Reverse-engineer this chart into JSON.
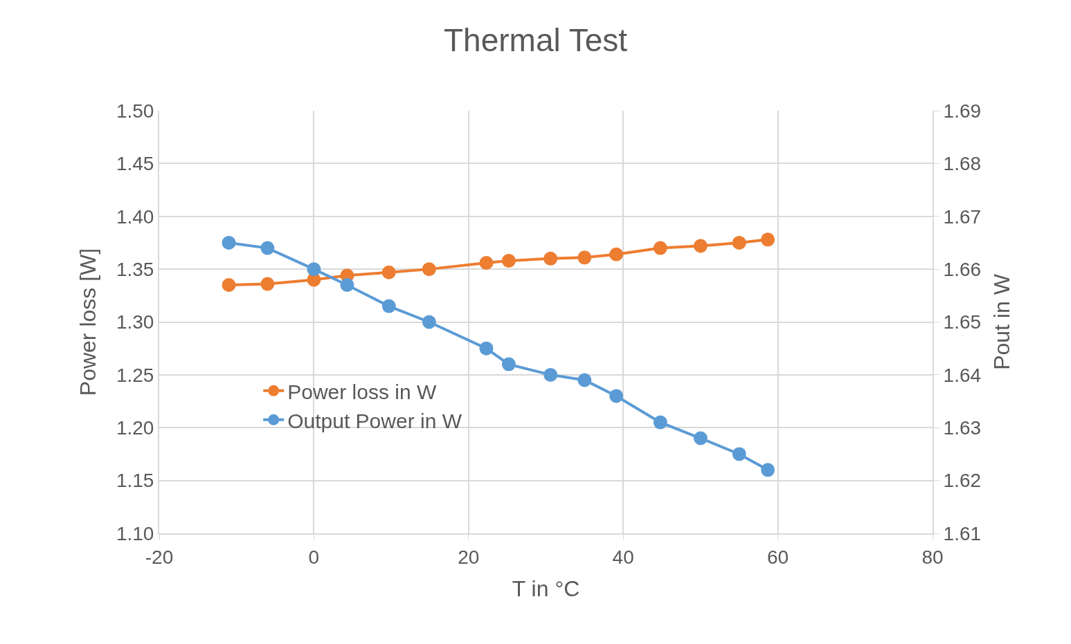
{
  "chart_data": {
    "type": "line",
    "title": "Thermal Test",
    "xlabel": "T in °C",
    "ylabel": "Power loss [W]",
    "y2label": "Pout in W",
    "x": [
      -11,
      -6,
      0,
      4.3,
      9.7,
      14.9,
      22.3,
      25.2,
      30.6,
      35.0,
      39.1,
      44.8,
      50.0,
      55.0,
      58.7
    ],
    "series": [
      {
        "name": "Power loss in W",
        "color": "#ed7d31",
        "values": [
          1.335,
          1.336,
          1.34,
          1.344,
          1.347,
          1.35,
          1.356,
          1.358,
          1.36,
          1.361,
          1.364,
          1.37,
          1.372,
          1.375,
          1.378
        ]
      },
      {
        "name": "Output Power in W",
        "color": "#5b9bd5",
        "axis": "y2",
        "values": [
          1.665,
          1.664,
          1.66,
          1.657,
          1.653,
          1.65,
          1.645,
          1.642,
          1.64,
          1.639,
          1.636,
          1.631,
          1.628,
          1.625,
          1.622
        ]
      }
    ],
    "xlim": [
      -20,
      80
    ],
    "xticks": [
      -20,
      0,
      20,
      40,
      60,
      80
    ],
    "ylim": [
      1.1,
      1.5
    ],
    "yticks": [
      {
        "value": 1.1,
        "label": "1.10"
      },
      1.15,
      {
        "value": 1.2,
        "label": "1.20"
      },
      1.25,
      {
        "value": 1.3,
        "label": "1.30"
      },
      1.35,
      {
        "value": 1.4,
        "label": "1.40"
      },
      1.45,
      {
        "value": 1.5,
        "label": "1.50"
      }
    ],
    "y2lim": [
      1.61,
      1.69
    ],
    "y2ticks": [
      1.61,
      1.62,
      1.63,
      1.64,
      1.65,
      1.66,
      1.67,
      1.68,
      1.69
    ],
    "grid": true,
    "legend": "center left",
    "marker": "circle",
    "line_style": "solid"
  }
}
